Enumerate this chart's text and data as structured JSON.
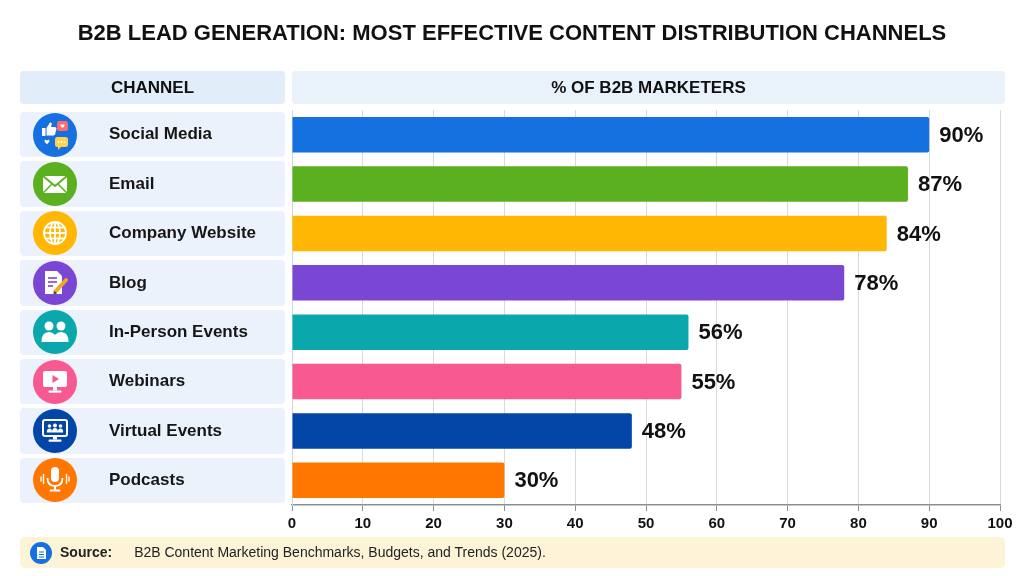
{
  "chart_data": {
    "type": "bar",
    "orientation": "horizontal",
    "title": "B2B LEAD GENERATION: MOST EFFECTIVE CONTENT DISTRIBUTION CHANNELS",
    "ylabel": "CHANNEL",
    "xlabel": "% OF B2B MARKETERS",
    "categories": [
      "Social Media",
      "Email",
      "Company Website",
      "Blog",
      "In-Person Events",
      "Webinars",
      "Virtual Events",
      "Podcasts"
    ],
    "values": [
      90,
      87,
      84,
      78,
      56,
      55,
      48,
      30
    ],
    "colors": [
      "#1570e0",
      "#5bb01f",
      "#ffb703",
      "#7a46d4",
      "#0aa7ad",
      "#f75990",
      "#0445a8",
      "#ff7700"
    ],
    "value_labels": [
      "90%",
      "87%",
      "84%",
      "78%",
      "56%",
      "55%",
      "48%",
      "30%"
    ],
    "xlim": [
      0,
      100
    ],
    "xticks": [
      0,
      10,
      20,
      30,
      40,
      50,
      60,
      70,
      80,
      90,
      100
    ],
    "grid": "x",
    "annotations": [
      "Source: B2B Content Marketing Benchmarks, Budgets, and Trends (2025)."
    ]
  }
}
